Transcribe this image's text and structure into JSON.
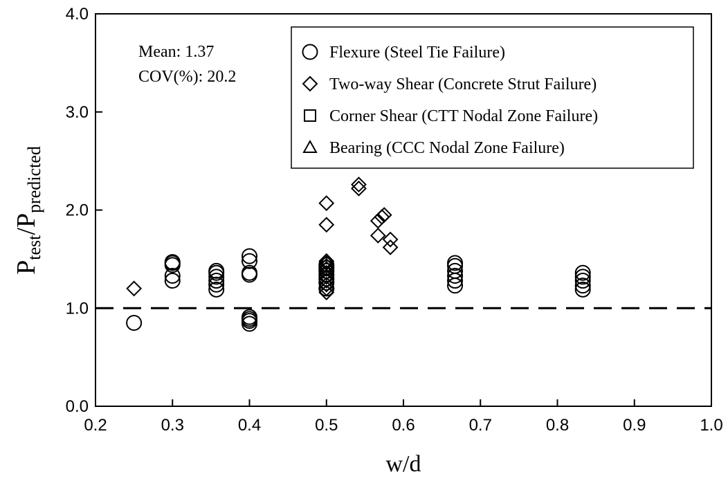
{
  "chart_data": {
    "type": "scatter",
    "title": "",
    "xlabel": "w/d",
    "ylabel_main": "P",
    "ylabel_sub1": "test",
    "ylabel_slash": "/P",
    "ylabel_sub2": "predicted",
    "xlim": [
      0.2,
      1.0
    ],
    "ylim": [
      0.0,
      4.0
    ],
    "x_ticks": [
      "0.2",
      "0.3",
      "0.4",
      "0.5",
      "0.6",
      "0.7",
      "0.8",
      "0.9",
      "1.0"
    ],
    "y_ticks": [
      "0.0",
      "1.0",
      "2.0",
      "3.0",
      "4.0"
    ],
    "reference_line": {
      "y": 1.0,
      "style": "dashed"
    },
    "grid": false,
    "legend_position": "top-right",
    "stats": [
      "Mean: 1.37",
      "COV(%): 20.2"
    ],
    "series": [
      {
        "name": "Flexure (Steel Tie Failure)",
        "marker": "circle",
        "x": [
          0.25,
          0.3,
          0.3,
          0.3,
          0.3,
          0.3,
          0.357,
          0.357,
          0.357,
          0.357,
          0.357,
          0.357,
          0.4,
          0.4,
          0.4,
          0.4,
          0.4,
          0.4,
          0.4,
          0.4,
          0.5,
          0.5,
          0.5,
          0.5,
          0.5,
          0.5,
          0.5,
          0.667,
          0.667,
          0.667,
          0.667,
          0.667,
          0.667,
          0.833,
          0.833,
          0.833,
          0.833,
          0.833
        ],
        "y": [
          0.85,
          1.28,
          1.33,
          1.44,
          1.46,
          1.47,
          1.19,
          1.24,
          1.28,
          1.32,
          1.36,
          1.38,
          0.84,
          0.87,
          0.89,
          0.91,
          1.34,
          1.36,
          1.48,
          1.53,
          1.2,
          1.26,
          1.3,
          1.34,
          1.38,
          1.41,
          1.44,
          1.23,
          1.28,
          1.33,
          1.38,
          1.43,
          1.46,
          1.19,
          1.23,
          1.28,
          1.32,
          1.36
        ]
      },
      {
        "name": "Two-way Shear (Concrete Strut Failure)",
        "marker": "diamond",
        "x": [
          0.25,
          0.5,
          0.5,
          0.5,
          0.5,
          0.5,
          0.5,
          0.5,
          0.5,
          0.5,
          0.5,
          0.5,
          0.5,
          0.542,
          0.542,
          0.567,
          0.567,
          0.572,
          0.575,
          0.583,
          0.583
        ],
        "y": [
          1.2,
          2.07,
          1.85,
          1.16,
          1.2,
          1.24,
          1.28,
          1.32,
          1.36,
          1.4,
          1.43,
          1.46,
          1.48,
          2.22,
          2.26,
          1.74,
          1.89,
          1.93,
          1.95,
          1.7,
          1.62
        ]
      },
      {
        "name": "Corner Shear (CTT Nodal Zone Failure)",
        "marker": "square",
        "x": [],
        "y": []
      },
      {
        "name": "Bearing (CCC Nodal Zone Failure)",
        "marker": "triangle",
        "x": [],
        "y": []
      }
    ]
  }
}
